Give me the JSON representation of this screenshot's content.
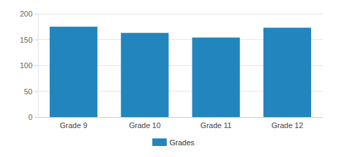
{
  "chart_data": {
    "type": "bar",
    "categories": [
      "Grade 9",
      "Grade 10",
      "Grade 11",
      "Grade 12"
    ],
    "series": [
      {
        "name": "Grades",
        "color": "#2385bd",
        "values": [
          175,
          163,
          154,
          173
        ]
      }
    ],
    "ylim": [
      0,
      200
    ],
    "yticks": [
      0,
      50,
      100,
      150,
      200
    ],
    "grid": true,
    "legend": "bottom"
  }
}
